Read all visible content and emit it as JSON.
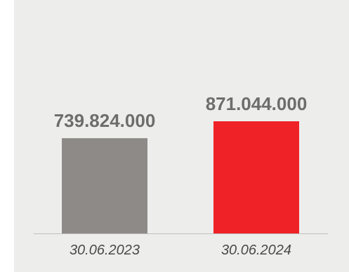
{
  "chart_data": {
    "type": "bar",
    "categories": [
      "30.06.2023",
      "30.06.2024"
    ],
    "values": [
      739824000,
      871044000
    ],
    "value_labels": [
      "739.824.000",
      "871.044.000"
    ],
    "bar_colors": [
      "#8d8a87",
      "#ef2227"
    ],
    "colors": {
      "panel_background": "#edeeec",
      "axis_line": "#bfbfbf",
      "value_text": "#6d6d6d",
      "category_text": "#4a4a4a"
    },
    "ylim": [
      0,
      1000000000
    ],
    "grid": false,
    "legend": "none"
  }
}
